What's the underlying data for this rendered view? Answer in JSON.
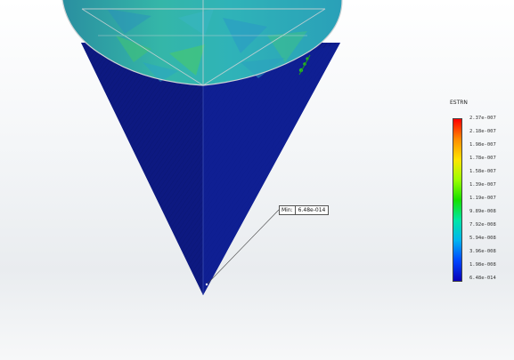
{
  "legend": {
    "title": "ESTRN",
    "ticks": [
      "2.37e-007",
      "2.18e-007",
      "1.98e-007",
      "1.78e-007",
      "1.58e-007",
      "1.39e-007",
      "1.19e-007",
      "9.89e-008",
      "7.92e-008",
      "5.94e-008",
      "3.96e-008",
      "1.98e-008",
      "6.48e-014"
    ],
    "colors": [
      "#ff0000",
      "#ff8c00",
      "#ffe400",
      "#9cff00",
      "#17e000",
      "#00e6a6",
      "#00b4f0",
      "#0046ff",
      "#0a00b8"
    ]
  },
  "probe": {
    "key": "Min:",
    "value": "6.48e-014"
  },
  "model": {
    "cone_color": "#0f1d8f",
    "shade_color": "#0b1672",
    "disk_color": "#2aa3a3",
    "disk_highlight": "#43c090",
    "edge_color": "#cfd4d6"
  }
}
